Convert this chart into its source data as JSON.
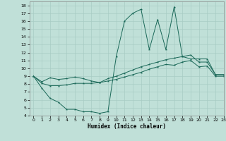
{
  "title": "",
  "xlabel": "Humidex (Indice chaleur)",
  "ylabel": "",
  "bg_color": "#c0e0d8",
  "line_color": "#1a6858",
  "xlim": [
    -0.5,
    23
  ],
  "ylim": [
    4,
    18.5
  ],
  "xticks": [
    0,
    1,
    2,
    3,
    4,
    5,
    6,
    7,
    8,
    9,
    10,
    11,
    12,
    13,
    14,
    15,
    16,
    17,
    18,
    19,
    20,
    21,
    22,
    23
  ],
  "yticks": [
    4,
    5,
    6,
    7,
    8,
    9,
    10,
    11,
    12,
    13,
    14,
    15,
    16,
    17,
    18
  ],
  "grid_color": "#a8ccc4",
  "line1_x": [
    0,
    1,
    2,
    3,
    4,
    5,
    6,
    7,
    8,
    9,
    10,
    11,
    12,
    13,
    14,
    15,
    16,
    17,
    18,
    19,
    20,
    21,
    22,
    23
  ],
  "line1_y": [
    9.0,
    7.5,
    6.2,
    5.7,
    4.8,
    4.8,
    4.5,
    4.5,
    4.3,
    4.5,
    11.5,
    16.0,
    17.0,
    17.5,
    12.4,
    16.2,
    12.4,
    17.8,
    11.5,
    11.2,
    11.2,
    11.2,
    9.2,
    9.2
  ],
  "line2_x": [
    0,
    1,
    2,
    3,
    4,
    5,
    6,
    7,
    8,
    9,
    10,
    11,
    12,
    13,
    14,
    15,
    16,
    17,
    18,
    19,
    20,
    21,
    22,
    23
  ],
  "line2_y": [
    9.0,
    8.3,
    8.8,
    8.6,
    8.7,
    8.9,
    8.7,
    8.4,
    8.2,
    8.7,
    9.0,
    9.4,
    9.8,
    10.2,
    10.5,
    10.8,
    11.1,
    11.3,
    11.5,
    11.7,
    10.8,
    10.8,
    9.2,
    9.2
  ],
  "line3_x": [
    0,
    1,
    2,
    3,
    4,
    5,
    6,
    7,
    8,
    9,
    10,
    11,
    12,
    13,
    14,
    15,
    16,
    17,
    18,
    19,
    20,
    21,
    22,
    23
  ],
  "line3_y": [
    9.0,
    8.1,
    7.8,
    7.8,
    7.9,
    8.1,
    8.1,
    8.1,
    8.2,
    8.4,
    8.6,
    8.9,
    9.2,
    9.5,
    9.9,
    10.2,
    10.5,
    10.4,
    10.8,
    11.0,
    10.2,
    10.3,
    9.0,
    9.0
  ]
}
